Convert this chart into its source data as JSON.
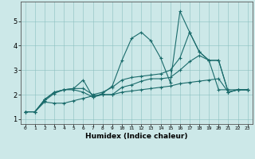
{
  "title": "",
  "xlabel": "Humidex (Indice chaleur)",
  "bg_color": "#cce8e8",
  "line_color": "#1a6b6b",
  "xlim": [
    -0.5,
    23.5
  ],
  "ylim": [
    0.8,
    5.8
  ],
  "xticks": [
    0,
    1,
    2,
    3,
    4,
    5,
    6,
    7,
    8,
    9,
    10,
    11,
    12,
    13,
    14,
    15,
    16,
    17,
    18,
    19,
    20,
    21,
    22,
    23
  ],
  "yticks": [
    1,
    2,
    3,
    4,
    5
  ],
  "lines": [
    [
      1.3,
      1.3,
      1.8,
      2.1,
      2.2,
      2.25,
      2.6,
      1.9,
      2.05,
      2.35,
      3.4,
      4.3,
      4.55,
      4.2,
      3.5,
      2.5,
      5.4,
      4.55,
      3.75,
      3.4,
      2.2,
      2.2,
      2.2,
      2.2
    ],
    [
      1.3,
      1.3,
      1.8,
      2.1,
      2.2,
      2.25,
      2.25,
      2.0,
      2.1,
      2.3,
      2.6,
      2.7,
      2.75,
      2.8,
      2.85,
      3.0,
      3.5,
      4.55,
      3.75,
      3.4,
      3.4,
      2.1,
      2.2,
      2.2
    ],
    [
      1.3,
      1.3,
      1.75,
      2.05,
      2.2,
      2.2,
      2.1,
      1.9,
      2.0,
      2.0,
      2.3,
      2.4,
      2.55,
      2.65,
      2.65,
      2.7,
      3.0,
      3.35,
      3.6,
      3.4,
      3.4,
      2.1,
      2.2,
      2.2
    ],
    [
      1.3,
      1.3,
      1.7,
      1.65,
      1.65,
      1.75,
      1.85,
      1.95,
      2.0,
      2.0,
      2.1,
      2.15,
      2.2,
      2.25,
      2.3,
      2.35,
      2.45,
      2.5,
      2.55,
      2.6,
      2.65,
      2.1,
      2.2,
      2.2
    ]
  ]
}
